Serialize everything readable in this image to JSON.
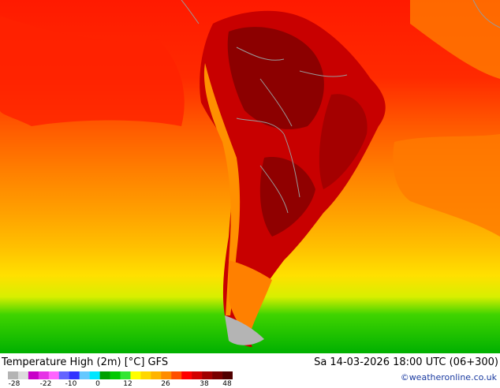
{
  "map": {
    "title": "Temperature High (2m) [°C] GFS",
    "datetime": "Sa 14-03-2026 18:00 UTC (06+300)",
    "credit": "©weatheronline.co.uk"
  },
  "legend": {
    "ticks": [
      "-28",
      "-22",
      "-10",
      "0",
      "12",
      "26",
      "38",
      "48"
    ],
    "colors": [
      "#b4b4b4",
      "#dcdcdc",
      "#c800c8",
      "#e632e6",
      "#ff64ff",
      "#6464ff",
      "#3232ff",
      "#64c8ff",
      "#00e6ff",
      "#00a000",
      "#00c800",
      "#32e632",
      "#ffff00",
      "#ffd700",
      "#ffb400",
      "#ff8c00",
      "#ff5000",
      "#ff0000",
      "#d20000",
      "#a00000",
      "#780000",
      "#500000"
    ]
  }
}
